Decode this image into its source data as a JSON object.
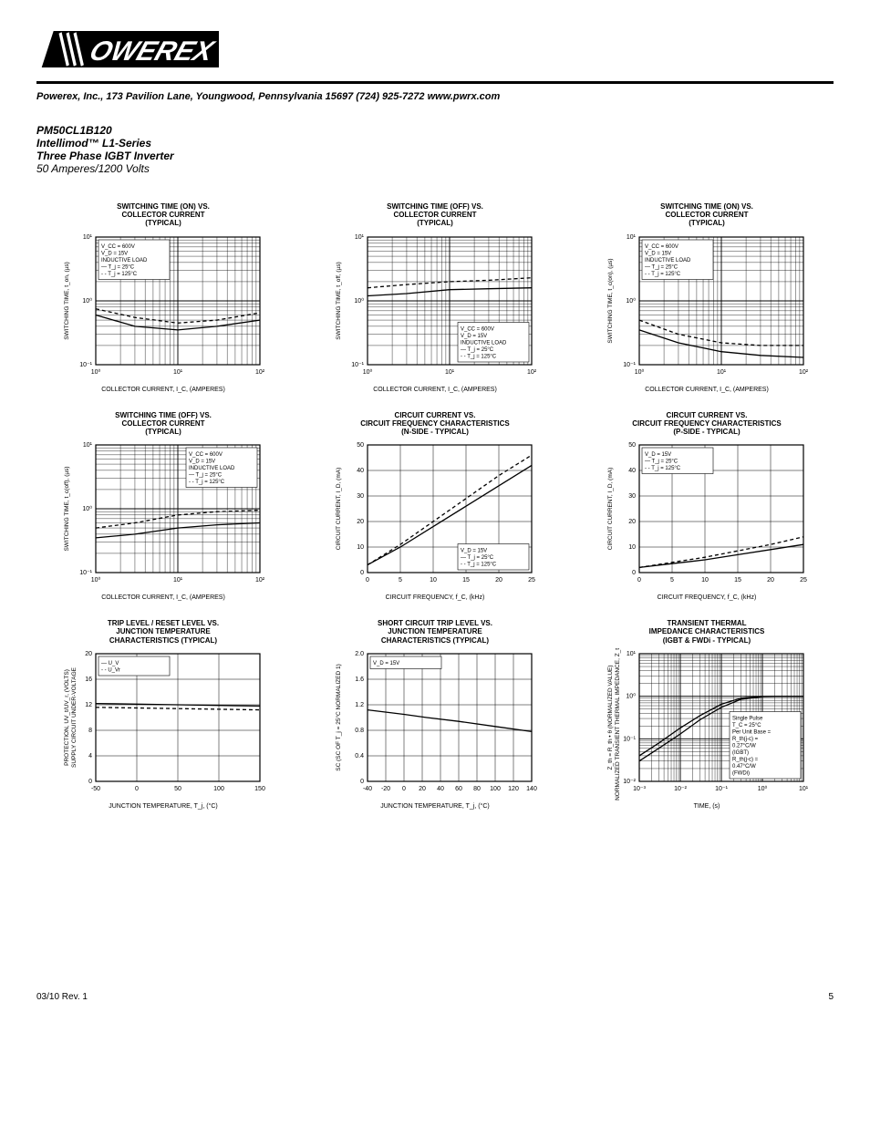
{
  "company_line": "Powerex, Inc., 173 Pavilion Lane, Youngwood, Pennsylvania  15697   (724) 925-7272  www.pwrx.com",
  "product": {
    "part": "PM50CL1B120",
    "series": "Intellimod™  L1-Series",
    "desc": "Three Phase IGBT Inverter",
    "rating": "50 Amperes/1200 Volts"
  },
  "footer": {
    "rev": "03/10 Rev. 1",
    "page": "5"
  },
  "colors": {
    "line": "#000000",
    "grid": "#000000",
    "bg": "#ffffff"
  },
  "charts": [
    {
      "id": "sw_on",
      "title": "SWITCHING TIME (ON) VS.\nCOLLECTOR CURRENT\n(TYPICAL)",
      "ylabel": "SWITCHING TIME, t_on, (µs)",
      "xlabel": "COLLECTOR CURRENT, I_C, (AMPERES)",
      "type": "loglog",
      "xlim": [
        1,
        100
      ],
      "ylim": [
        0.1,
        10
      ],
      "xticks": [
        "10⁰",
        "10¹",
        "10²"
      ],
      "yticks": [
        "10⁻¹",
        "10⁰",
        "10¹"
      ],
      "legend": [
        "V_CC = 600V",
        "V_D = 15V",
        "INDUCTIVE LOAD",
        "— T_j = 25°C",
        "- - T_j = 125°C"
      ],
      "legend_pos": "top-left",
      "series": [
        {
          "dash": "none",
          "pts": [
            [
              1,
              0.6
            ],
            [
              3,
              0.4
            ],
            [
              10,
              0.35
            ],
            [
              30,
              0.4
            ],
            [
              100,
              0.5
            ]
          ]
        },
        {
          "dash": "4,3",
          "pts": [
            [
              1,
              0.75
            ],
            [
              3,
              0.55
            ],
            [
              10,
              0.45
            ],
            [
              30,
              0.5
            ],
            [
              100,
              0.65
            ]
          ]
        }
      ]
    },
    {
      "id": "sw_off_top",
      "title": "SWITCHING TIME (OFF) VS.\nCOLLECTOR CURRENT\n(TYPICAL)",
      "ylabel": "SWITCHING TIME, t_off, (µs)",
      "xlabel": "COLLECTOR CURRENT, I_C, (AMPERES)",
      "type": "loglog",
      "xlim": [
        1,
        100
      ],
      "ylim": [
        0.1,
        10
      ],
      "xticks": [
        "10⁰",
        "10¹",
        "10²"
      ],
      "yticks": [
        "10⁻¹",
        "10⁰",
        "10¹"
      ],
      "legend": [
        "V_CC = 600V",
        "V_D = 15V",
        "INDUCTIVE LOAD",
        "— T_j = 25°C",
        "- - T_j = 125°C"
      ],
      "legend_pos": "bottom-right",
      "series": [
        {
          "dash": "none",
          "pts": [
            [
              1,
              1.2
            ],
            [
              3,
              1.3
            ],
            [
              10,
              1.5
            ],
            [
              30,
              1.55
            ],
            [
              100,
              1.6
            ]
          ]
        },
        {
          "dash": "4,3",
          "pts": [
            [
              1,
              1.6
            ],
            [
              3,
              1.8
            ],
            [
              10,
              2.0
            ],
            [
              30,
              2.1
            ],
            [
              100,
              2.3
            ]
          ]
        }
      ]
    },
    {
      "id": "sw_on_right",
      "title": "SWITCHING TIME (ON) VS.\nCOLLECTOR CURRENT\n(TYPICAL)",
      "ylabel": "SWITCHING TIME, t_c(on), (µs)",
      "xlabel": "COLLECTOR CURRENT, I_C, (AMPERES)",
      "type": "loglog",
      "xlim": [
        1,
        100
      ],
      "ylim": [
        0.1,
        10
      ],
      "xticks": [
        "10⁰",
        "10¹",
        "10²"
      ],
      "yticks": [
        "10⁻¹",
        "10⁰",
        "10¹"
      ],
      "legend": [
        "V_CC = 600V",
        "V_D = 15V",
        "INDUCTIVE LOAD",
        "— T_j = 25°C",
        "- - T_j = 125°C"
      ],
      "legend_pos": "top-left",
      "series": [
        {
          "dash": "none",
          "pts": [
            [
              1,
              0.35
            ],
            [
              3,
              0.22
            ],
            [
              10,
              0.16
            ],
            [
              30,
              0.14
            ],
            [
              100,
              0.13
            ]
          ]
        },
        {
          "dash": "4,3",
          "pts": [
            [
              1,
              0.5
            ],
            [
              3,
              0.3
            ],
            [
              10,
              0.22
            ],
            [
              30,
              0.2
            ],
            [
              100,
              0.2
            ]
          ]
        }
      ]
    },
    {
      "id": "sw_off_left",
      "title": "SWITCHING TIME (OFF) VS.\nCOLLECTOR CURRENT\n(TYPICAL)",
      "ylabel": "SWITCHING TIME, t_c(off), (µs)",
      "xlabel": "COLLECTOR CURRENT, I_C, (AMPERES)",
      "type": "loglog",
      "xlim": [
        1,
        100
      ],
      "ylim": [
        0.1,
        10
      ],
      "xticks": [
        "10⁰",
        "10¹",
        "10²"
      ],
      "yticks": [
        "10⁻¹",
        "10⁰",
        "10¹"
      ],
      "legend": [
        "V_CC = 600V",
        "V_D = 15V",
        "INDUCTIVE LOAD",
        "— T_j = 25°C",
        "- - T_j = 125°C"
      ],
      "legend_pos": "top-right",
      "series": [
        {
          "dash": "none",
          "pts": [
            [
              1,
              0.35
            ],
            [
              3,
              0.4
            ],
            [
              10,
              0.5
            ],
            [
              30,
              0.56
            ],
            [
              100,
              0.6
            ]
          ]
        },
        {
          "dash": "4,3",
          "pts": [
            [
              1,
              0.5
            ],
            [
              3,
              0.6
            ],
            [
              10,
              0.8
            ],
            [
              30,
              0.9
            ],
            [
              100,
              0.95
            ]
          ]
        }
      ]
    },
    {
      "id": "circ_n",
      "title": "CIRCUIT CURRENT VS.\nCIRCUIT FREQUENCY CHARACTERISTICS\n(N-SIDE - TYPICAL)",
      "ylabel": "CIRCUIT CURRENT, I_D, (mA)",
      "xlabel": "CIRCUIT FREQUENCY, f_C, (kHz)",
      "type": "linear",
      "xlim": [
        0,
        25
      ],
      "ylim": [
        0,
        50
      ],
      "xticks": [
        "0",
        "5",
        "10",
        "15",
        "20",
        "25"
      ],
      "yticks": [
        "0",
        "10",
        "20",
        "30",
        "40",
        "50"
      ],
      "legend": [
        "V_D = 15V",
        "— T_j = 25°C",
        "- - T_j = 125°C"
      ],
      "legend_pos": "bottom-right",
      "series": [
        {
          "dash": "none",
          "pts": [
            [
              0,
              3
            ],
            [
              5,
              10
            ],
            [
              10,
              18
            ],
            [
              15,
              26
            ],
            [
              20,
              34
            ],
            [
              25,
              42
            ]
          ]
        },
        {
          "dash": "4,3",
          "pts": [
            [
              0,
              3
            ],
            [
              5,
              11
            ],
            [
              10,
              20
            ],
            [
              15,
              29
            ],
            [
              20,
              38
            ],
            [
              25,
              46
            ]
          ]
        }
      ]
    },
    {
      "id": "circ_p",
      "title": "CIRCUIT CURRENT VS.\nCIRCUIT FREQUENCY CHARACTERISTICS\n(P-SIDE - TYPICAL)",
      "ylabel": "CIRCUIT CURRENT, I_D, (mA)",
      "xlabel": "CIRCUIT FREQUENCY, f_C, (kHz)",
      "type": "linear",
      "xlim": [
        0,
        25
      ],
      "ylim": [
        0,
        50
      ],
      "xticks": [
        "0",
        "5",
        "10",
        "15",
        "20",
        "25"
      ],
      "yticks": [
        "0",
        "10",
        "20",
        "30",
        "40",
        "50"
      ],
      "legend": [
        "V_D = 15V",
        "— T_j = 25°C",
        "- - T_j = 125°C"
      ],
      "legend_pos": "top-left",
      "series": [
        {
          "dash": "none",
          "pts": [
            [
              0,
              2
            ],
            [
              5,
              3.5
            ],
            [
              10,
              5
            ],
            [
              15,
              7
            ],
            [
              20,
              9
            ],
            [
              25,
              11
            ]
          ]
        },
        {
          "dash": "4,3",
          "pts": [
            [
              0,
              2
            ],
            [
              5,
              4
            ],
            [
              10,
              6
            ],
            [
              15,
              8.5
            ],
            [
              20,
              11
            ],
            [
              25,
              14
            ]
          ]
        }
      ]
    },
    {
      "id": "trip_reset",
      "title": "TRIP LEVEL / RESET LEVEL VS.\nJUNCTION TEMPERATURE\nCHARACTERISTICS (TYPICAL)",
      "ylabel": "SUPPLY CIRCUIT UNDER-VOLTAGE\nPROTECTION, UV_t/UV_r, (VOLTS)",
      "xlabel": "JUNCTION TEMPERATURE, T_j, (°C)",
      "type": "linear",
      "xlim": [
        -50,
        150
      ],
      "ylim": [
        0,
        20
      ],
      "xticks": [
        "-50",
        "0",
        "50",
        "100",
        "150"
      ],
      "yticks": [
        "0",
        "4",
        "8",
        "12",
        "16",
        "20"
      ],
      "legend": [
        "— U_V",
        "- - U_Vr"
      ],
      "legend_pos": "top-left",
      "series": [
        {
          "dash": "none",
          "pts": [
            [
              -50,
              12.2
            ],
            [
              0,
              12.1
            ],
            [
              50,
              12.0
            ],
            [
              100,
              11.9
            ],
            [
              150,
              11.8
            ]
          ]
        },
        {
          "dash": "4,3",
          "pts": [
            [
              -50,
              11.6
            ],
            [
              0,
              11.5
            ],
            [
              50,
              11.4
            ],
            [
              100,
              11.3
            ],
            [
              150,
              11.2
            ]
          ]
        }
      ]
    },
    {
      "id": "sc_trip",
      "title": "SHORT CIRCUIT TRIP LEVEL VS.\nJUNCTION TEMPERATURE\nCHARACTERISTICS (TYPICAL)",
      "ylabel": "SC (SC OF T_j = 25°C NORMALIZED 1)",
      "xlabel": "JUNCTION TEMPERATURE, T_j, (°C)",
      "type": "linear",
      "xlim": [
        -40,
        140
      ],
      "ylim": [
        0,
        2.0
      ],
      "xticks": [
        "-40",
        "-20",
        "0",
        "20",
        "40",
        "60",
        "80",
        "100",
        "120",
        "140"
      ],
      "yticks": [
        "0",
        "0.4",
        "0.8",
        "1.2",
        "1.6",
        "2.0"
      ],
      "legend": [
        "V_D = 15V"
      ],
      "legend_pos": "top-left",
      "series": [
        {
          "dash": "none",
          "pts": [
            [
              -40,
              1.12
            ],
            [
              0,
              1.05
            ],
            [
              25,
              1.0
            ],
            [
              60,
              0.94
            ],
            [
              100,
              0.86
            ],
            [
              140,
              0.78
            ]
          ]
        }
      ]
    },
    {
      "id": "thermal",
      "title": "TRANSIENT THERMAL\nIMPEDANCE CHARACTERISTICS\n(IGBT & FWDi - TYPICAL)",
      "ylabel": "NORMALIZED TRANSIENT THERMAL IMPEDANCE, Z_th(j-c)\nZ_th = R_th • θ (NORMALIZED VALUE)",
      "xlabel": "TIME, (s)",
      "type": "loglog",
      "xlim": [
        0.001,
        10
      ],
      "ylim": [
        0.01,
        10
      ],
      "xticks": [
        "10⁻³",
        "10⁻²",
        "10⁻¹",
        "10⁰",
        "10¹"
      ],
      "yticks": [
        "10⁻²",
        "10⁻¹",
        "10⁰",
        "10¹"
      ],
      "legend": [
        "Single Pulse",
        "T_C = 25°C",
        "Per Unit Base =",
        "R_th(j-c) =",
        "  0.27°C/W",
        "  (IGBT)",
        "R_th(j-c) =",
        "  0.47°C/W",
        "  (FWDi)"
      ],
      "legend_pos": "bottom-right",
      "series": [
        {
          "dash": "none",
          "pts": [
            [
              0.001,
              0.03
            ],
            [
              0.003,
              0.06
            ],
            [
              0.01,
              0.13
            ],
            [
              0.03,
              0.28
            ],
            [
              0.1,
              0.55
            ],
            [
              0.3,
              0.85
            ],
            [
              1,
              0.98
            ],
            [
              3,
              1.0
            ],
            [
              10,
              1.0
            ]
          ]
        },
        {
          "dash": "none",
          "pts": [
            [
              0.001,
              0.04
            ],
            [
              0.003,
              0.08
            ],
            [
              0.01,
              0.18
            ],
            [
              0.03,
              0.35
            ],
            [
              0.1,
              0.65
            ],
            [
              0.3,
              0.9
            ],
            [
              1,
              0.99
            ],
            [
              3,
              1.0
            ],
            [
              10,
              1.0
            ]
          ]
        }
      ]
    }
  ]
}
